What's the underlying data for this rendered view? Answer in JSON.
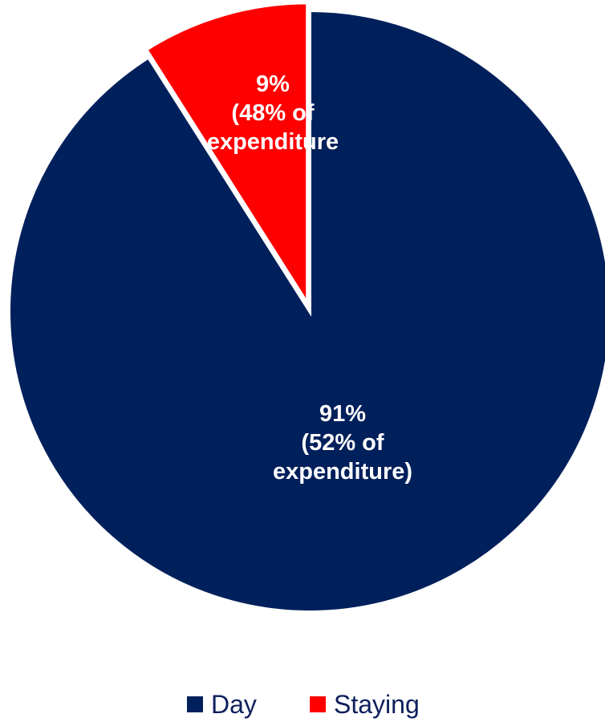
{
  "chart_data": {
    "type": "pie",
    "slices": [
      {
        "name": "Day",
        "value": 91,
        "color": "#00205b",
        "label_lines": [
          "91%",
          "(52% of",
          "expenditure)"
        ]
      },
      {
        "name": "Staying",
        "value": 9,
        "color": "#ff0000",
        "label_lines": [
          "9%",
          "(48% of",
          "expenditure"
        ]
      }
    ],
    "legend": {
      "position": "bottom",
      "entries": [
        "Day",
        "Staying"
      ]
    },
    "title": ""
  }
}
